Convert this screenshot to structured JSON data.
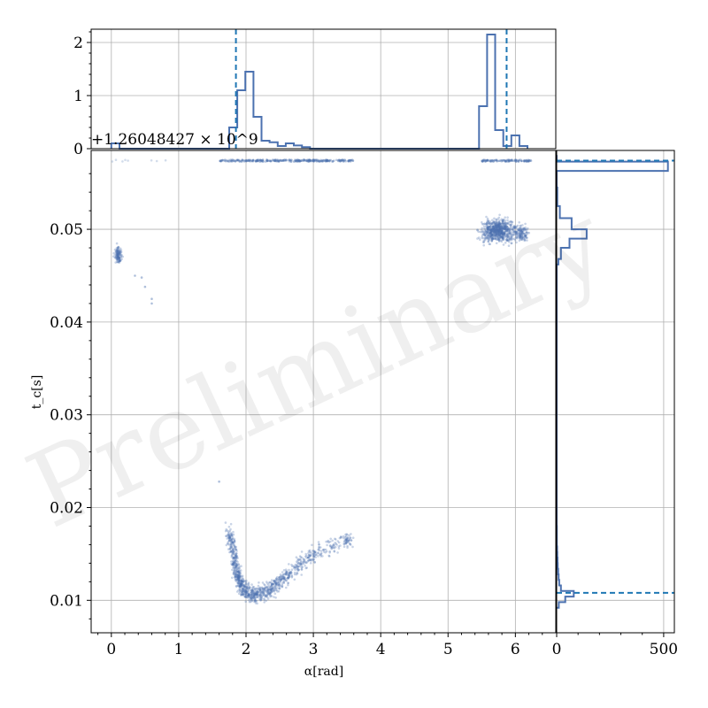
{
  "chart_data": [
    {
      "type": "scatter",
      "xlabel": "α[rad]",
      "ylabel": "t_c[s]",
      "y_offset_label": "+1.26048427 × 10^9",
      "xlim": [
        -0.3,
        6.6
      ],
      "ylim": [
        0.0065,
        0.0585
      ],
      "xticks": [
        0,
        1,
        2,
        3,
        4,
        5,
        6
      ],
      "yticks": [
        0.01,
        0.02,
        0.03,
        0.04,
        0.05
      ],
      "grid": true,
      "color": "#4c72b0",
      "watermark": "Preliminary",
      "clusters": [
        {
          "x": [
            1.6,
            3.6
          ],
          "y": [
            0.0574,
            0.0574
          ],
          "density": "band"
        },
        {
          "x": [
            5.5,
            6.25
          ],
          "y": [
            0.0574,
            0.0574
          ],
          "density": "band"
        },
        {
          "x": [
            0.0,
            0.9
          ],
          "y": [
            0.0574,
            0.0574
          ],
          "density": "sparse"
        },
        {
          "x_center": 5.75,
          "y_center": 0.0498,
          "x_spread": 0.25,
          "y_spread": 0.0012,
          "density": "dense"
        },
        {
          "x_center": 6.1,
          "y_center": 0.0496,
          "x_spread": 0.1,
          "y_spread": 0.0008,
          "density": "medium"
        },
        {
          "x_center": 0.1,
          "y_center": 0.0472,
          "x_spread": 0.05,
          "y_spread": 0.0009,
          "density": "medium"
        },
        {
          "points": [
            [
              0.35,
              0.045
            ],
            [
              0.45,
              0.0448
            ],
            [
              0.5,
              0.0438
            ],
            [
              0.6,
              0.0425
            ],
            [
              0.6,
              0.042
            ],
            [
              1.6,
              0.0228
            ]
          ]
        },
        {
          "curve": [
            [
              1.75,
              0.0175
            ],
            [
              1.8,
              0.0155
            ],
            [
              1.85,
              0.0135
            ],
            [
              1.9,
              0.0122
            ],
            [
              1.95,
              0.0113
            ],
            [
              2.05,
              0.0107
            ],
            [
              2.15,
              0.0106
            ],
            [
              2.3,
              0.011
            ],
            [
              2.45,
              0.0117
            ],
            [
              2.6,
              0.0127
            ],
            [
              2.75,
              0.0136
            ],
            [
              2.85,
              0.0142
            ],
            [
              3.0,
              0.015
            ],
            [
              3.2,
              0.0157
            ],
            [
              3.45,
              0.0163
            ],
            [
              3.55,
              0.0165
            ]
          ],
          "density": "dense"
        }
      ]
    },
    {
      "type": "bar",
      "orientation": "step-histogram",
      "axis": "x-marginal",
      "ylim": [
        0,
        2.25
      ],
      "yticks": [
        0,
        1,
        2
      ],
      "bins": [
        {
          "x0": 0.0,
          "x1": 0.12,
          "h": 0.1
        },
        {
          "x0": 0.12,
          "x1": 1.75,
          "h": 0.0
        },
        {
          "x0": 1.75,
          "x1": 1.87,
          "h": 0.4
        },
        {
          "x0": 1.87,
          "x1": 1.99,
          "h": 1.1
        },
        {
          "x0": 1.99,
          "x1": 2.11,
          "h": 1.45
        },
        {
          "x0": 2.11,
          "x1": 2.23,
          "h": 0.6
        },
        {
          "x0": 2.23,
          "x1": 2.35,
          "h": 0.15
        },
        {
          "x0": 2.35,
          "x1": 2.47,
          "h": 0.12
        },
        {
          "x0": 2.47,
          "x1": 2.59,
          "h": 0.05
        },
        {
          "x0": 2.59,
          "x1": 2.71,
          "h": 0.1
        },
        {
          "x0": 2.71,
          "x1": 2.83,
          "h": 0.06
        },
        {
          "x0": 2.83,
          "x1": 2.95,
          "h": 0.03
        },
        {
          "x0": 2.95,
          "x1": 5.46,
          "h": 0.0
        },
        {
          "x0": 5.46,
          "x1": 5.58,
          "h": 0.8
        },
        {
          "x0": 5.58,
          "x1": 5.7,
          "h": 2.15
        },
        {
          "x0": 5.7,
          "x1": 5.82,
          "h": 0.35
        },
        {
          "x0": 5.82,
          "x1": 5.94,
          "h": 0.05
        },
        {
          "x0": 5.94,
          "x1": 6.06,
          "h": 0.25
        },
        {
          "x0": 6.06,
          "x1": 6.18,
          "h": 0.05
        }
      ],
      "reference_line_x": 1.85,
      "reference_line_x2": 5.87
    },
    {
      "type": "bar",
      "orientation": "step-histogram-horizontal",
      "axis": "y-marginal",
      "xlim": [
        0,
        550
      ],
      "xticks": [
        0,
        500
      ],
      "bins": [
        {
          "y0": 0.0092,
          "y1": 0.0098,
          "w": 10
        },
        {
          "y0": 0.0098,
          "y1": 0.0104,
          "w": 40
        },
        {
          "y0": 0.0104,
          "y1": 0.011,
          "w": 80
        },
        {
          "y0": 0.011,
          "y1": 0.0116,
          "w": 20
        },
        {
          "y0": 0.0116,
          "y1": 0.0122,
          "w": 12
        },
        {
          "y0": 0.0122,
          "y1": 0.0128,
          "w": 9
        },
        {
          "y0": 0.0128,
          "y1": 0.0134,
          "w": 7
        },
        {
          "y0": 0.0134,
          "y1": 0.014,
          "w": 5
        },
        {
          "y0": 0.014,
          "y1": 0.0146,
          "w": 4
        },
        {
          "y0": 0.0146,
          "y1": 0.0152,
          "w": 3
        },
        {
          "y0": 0.0152,
          "y1": 0.0158,
          "w": 2
        },
        {
          "y0": 0.0158,
          "y1": 0.018,
          "w": 1
        },
        {
          "y0": 0.018,
          "y1": 0.0462,
          "w": 0
        },
        {
          "y0": 0.0462,
          "y1": 0.0468,
          "w": 8
        },
        {
          "y0": 0.0468,
          "y1": 0.048,
          "w": 20
        },
        {
          "y0": 0.048,
          "y1": 0.049,
          "w": 60
        },
        {
          "y0": 0.049,
          "y1": 0.05,
          "w": 140
        },
        {
          "y0": 0.05,
          "y1": 0.0512,
          "w": 70
        },
        {
          "y0": 0.0512,
          "y1": 0.0525,
          "w": 15
        },
        {
          "y0": 0.0525,
          "y1": 0.0545,
          "w": 3
        },
        {
          "y0": 0.0545,
          "y1": 0.0563,
          "w": 0
        },
        {
          "y0": 0.0563,
          "y1": 0.0573,
          "w": 520
        },
        {
          "y0": 0.0573,
          "y1": 0.058,
          "w": 0
        }
      ],
      "reference_line_y": 0.0574,
      "reference_line_y2": 0.0108
    }
  ]
}
